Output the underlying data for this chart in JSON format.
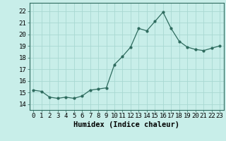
{
  "x": [
    0,
    1,
    2,
    3,
    4,
    5,
    6,
    7,
    8,
    9,
    10,
    11,
    12,
    13,
    14,
    15,
    16,
    17,
    18,
    19,
    20,
    21,
    22,
    23
  ],
  "y": [
    15.2,
    15.1,
    14.6,
    14.5,
    14.6,
    14.5,
    14.7,
    15.2,
    15.3,
    15.4,
    17.4,
    18.1,
    18.9,
    20.5,
    20.3,
    21.1,
    21.9,
    20.5,
    19.4,
    18.9,
    18.7,
    18.6,
    18.8,
    19.0
  ],
  "line_color": "#2E6B5E",
  "marker": "o",
  "marker_size": 2.0,
  "bg_color": "#C8EEE9",
  "grid_color": "#A8D8D2",
  "xlabel": "Humidex (Indice chaleur)",
  "ylim": [
    13.5,
    22.7
  ],
  "xlim": [
    -0.5,
    23.5
  ],
  "yticks": [
    14,
    15,
    16,
    17,
    18,
    19,
    20,
    21,
    22
  ],
  "xtick_labels": [
    "0",
    "1",
    "2",
    "3",
    "4",
    "5",
    "6",
    "7",
    "8",
    "9",
    "10",
    "11",
    "12",
    "13",
    "14",
    "15",
    "16",
    "17",
    "18",
    "19",
    "20",
    "21",
    "22",
    "23"
  ],
  "tick_fontsize": 6.5,
  "xlabel_fontsize": 7.5
}
